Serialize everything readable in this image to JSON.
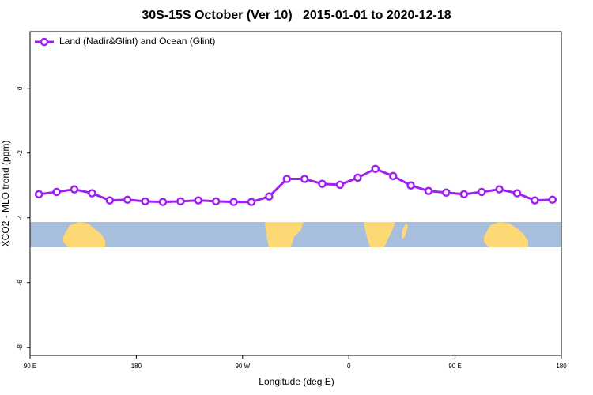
{
  "chart_data": {
    "type": "line",
    "title": "30S-15S October (Ver 10)   2015-01-01 to 2020-12-18",
    "x_label": "Longitude (deg E)",
    "y_label": "XCO2 - MLO trend (ppm)",
    "x": [
      97.5,
      112.5,
      127.5,
      142.5,
      157.5,
      172.5,
      187.5,
      202.5,
      217.5,
      232.5,
      247.5,
      262.5,
      277.5,
      292.5,
      307.5,
      322.5,
      337.5,
      352.5,
      367.5,
      382.5,
      397.5,
      412.5,
      427.5,
      442.5,
      457.5,
      472.5,
      487.5,
      502.5,
      517.5,
      532.5
    ],
    "series": [
      {
        "name": "Land (Nadir&Glint) and Ocean (Glint)",
        "color": "#a020f0",
        "values": [
          -3.27,
          -3.2,
          -3.12,
          -3.24,
          -3.46,
          -3.44,
          -3.49,
          -3.51,
          -3.49,
          -3.46,
          -3.49,
          -3.51,
          -3.51,
          -3.34,
          -2.8,
          -2.8,
          -2.95,
          -2.98,
          -2.76,
          -2.49,
          -2.71,
          -3.0,
          -3.17,
          -3.22,
          -3.27,
          -3.2,
          -3.12,
          -3.24,
          -3.46,
          -3.44
        ]
      }
    ],
    "xlim": [
      90,
      540
    ],
    "xticks": [
      {
        "value": 90,
        "label": "90 E"
      },
      {
        "value": 180,
        "label": "180"
      },
      {
        "value": 270,
        "label": "90 W"
      },
      {
        "value": 360,
        "label": "0"
      },
      {
        "value": 450,
        "label": "90 E"
      },
      {
        "value": 540,
        "label": "180"
      }
    ],
    "ylim": [
      -8.25,
      1.75
    ],
    "yticks": [
      0,
      -2,
      -4,
      -6,
      -8
    ],
    "legend": "top-left",
    "grid": false
  }
}
